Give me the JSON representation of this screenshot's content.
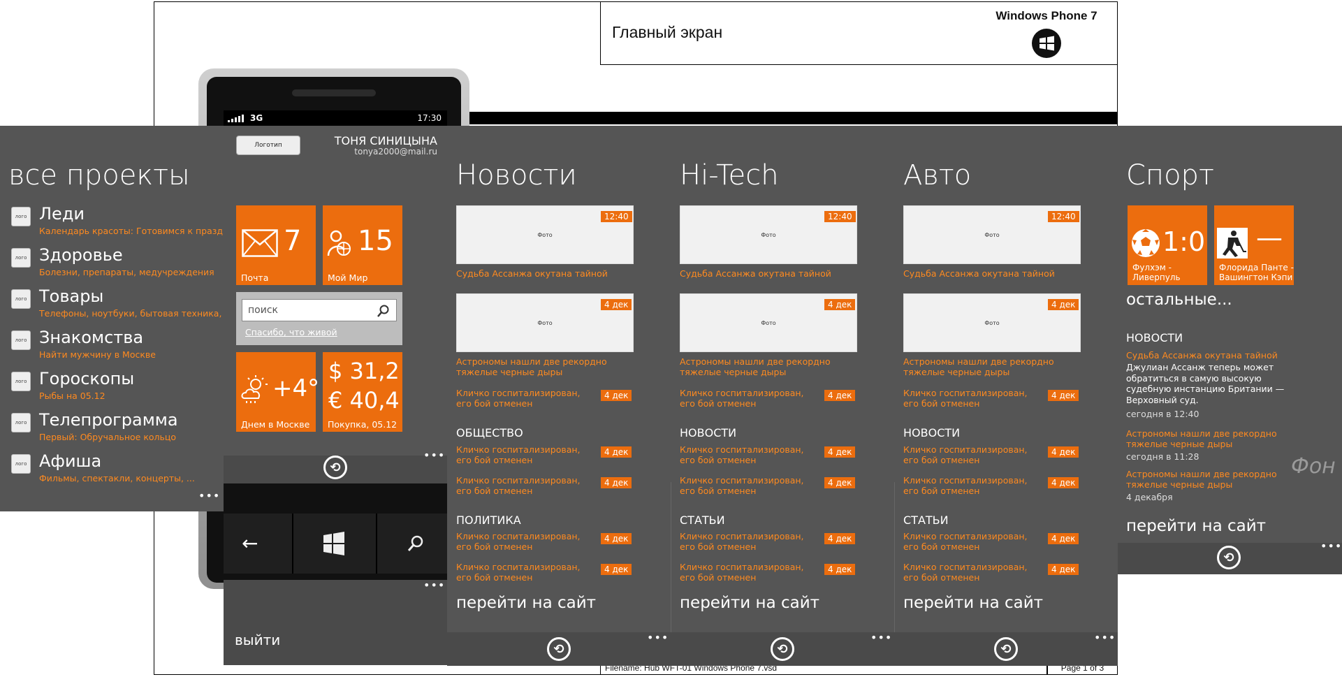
{
  "doc": {
    "title": "Главный экран",
    "os_name": "Windows Phone 7",
    "footer_file": "Filename: Hub WFT-01 Windows Phone 7.vsd",
    "footer_page": "Page 1 of 3",
    "phone_bg_text": "Фон"
  },
  "status": {
    "network": "3G",
    "time": "17:30"
  },
  "all_projects": {
    "heading": "все проекты",
    "logo_label": "лого",
    "items": [
      {
        "title": "Леди",
        "sub": "Календарь красоты: Готовимся к праздни"
      },
      {
        "title": "Здоровье",
        "sub": "Болезни, препараты, медучреждения"
      },
      {
        "title": "Товары",
        "sub": "Телефоны, ноутбуки, бытовая техника, ..."
      },
      {
        "title": "Знакомства",
        "sub": "Найти мужчину в Москве"
      },
      {
        "title": "Гороскопы",
        "sub": "Рыбы на 05.12"
      },
      {
        "title": "Телепрограмма",
        "sub": "Первый: Обручальное кольцо"
      },
      {
        "title": "Афиша",
        "sub": "Фильмы, спектакли, концерты, ..."
      }
    ]
  },
  "main": {
    "logo_button": "Логотип",
    "user_name": "ТОНЯ СИНИЦЫНА",
    "user_email": "tonya2000@mail.ru",
    "mail_count": "7",
    "mail_label": "Почта",
    "world_count": "15",
    "world_label": "Мой Мир",
    "search_placeholder": "поиск",
    "search_link": "Спасибо, что живой",
    "weather_temp": "+4°",
    "weather_label": "Днем в Москве",
    "usd": "$ 31,2",
    "eur": "€ 40,4",
    "rates_label": "Покупка, 05.12",
    "logout": "выйти"
  },
  "common": {
    "photo": "Фото",
    "time": "12:40",
    "date": "4 дек",
    "headline1": "Судьба Ассанжа окутана тайной",
    "headline2a": "Астрономы нашли две рекордно",
    "headline2b": "тяжелые черные дыры",
    "klichko_a": "Кличко госпитализирован,",
    "klichko_b": "его бой отменен",
    "go_site": "перейти на сайт"
  },
  "columns": [
    {
      "title": "Новости",
      "sec1": "ОБЩЕСТВО",
      "sec2": "ПОЛИТИКА"
    },
    {
      "title": "Hi-Tech",
      "sec1": "НОВОСТИ",
      "sec2": "СТАТЬИ"
    },
    {
      "title": "Авто",
      "sec1": "НОВОСТИ",
      "sec2": "СТАТЬИ"
    }
  ],
  "sport": {
    "title": "Спорт",
    "score1": "1:0",
    "team1a": "Фулхэм -",
    "team1b": "Ливерпуль",
    "score2": "—",
    "team2a": "Флорида Панте -",
    "team2b": "Вашингтон Кэпи",
    "rest": "остальные...",
    "news_header": "НОВОСТИ",
    "story1_body1": "Джулиан Ассанж теперь может",
    "story1_body2": "обратиться в самую высокую",
    "story1_body3": "судебную инстанцию Британии —",
    "story1_body4": "Верховный суд.",
    "story1_time": "сегодня в 12:40",
    "story2_time": "сегодня в 11:28",
    "story3_time": "4 декабря"
  }
}
